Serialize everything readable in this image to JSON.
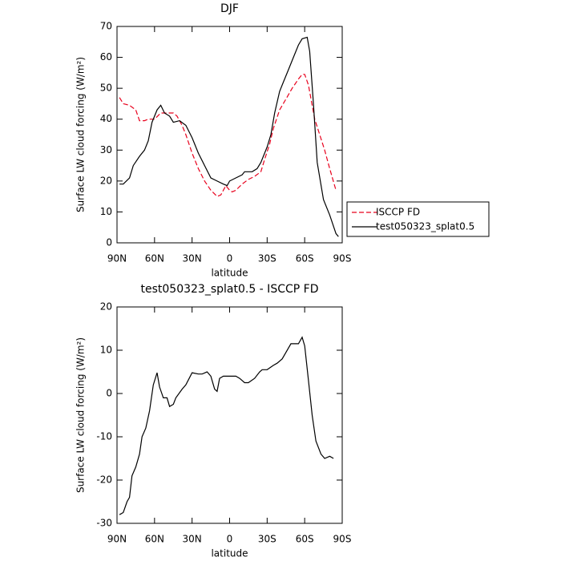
{
  "chart_data": [
    {
      "type": "line",
      "title": "DJF",
      "xlabel": "latitude",
      "ylabel": "Surface LW cloud forcing (W/m²)",
      "xlim": [
        90,
        -90
      ],
      "xticks": [
        {
          "value": 90,
          "label": "90N"
        },
        {
          "value": 60,
          "label": "60N"
        },
        {
          "value": 30,
          "label": "30N"
        },
        0,
        {
          "value": -30,
          "label": "30S"
        },
        {
          "value": -60,
          "label": "60S"
        },
        {
          "value": -90,
          "label": "90S"
        }
      ],
      "ylim": [
        0,
        70
      ],
      "yticks": [
        0,
        10,
        20,
        30,
        40,
        50,
        60,
        70
      ],
      "legend": "right",
      "series": [
        {
          "name": "ISCCP FD",
          "color": "#e8001c",
          "dash": true,
          "x": [
            88,
            85,
            80,
            75,
            72,
            68,
            65,
            60,
            55,
            50,
            45,
            42,
            38,
            35,
            30,
            25,
            20,
            15,
            10,
            7,
            3,
            0,
            -2,
            -5,
            -10,
            -15,
            -20,
            -25,
            -28,
            -32,
            -35,
            -40,
            -45,
            -50,
            -55,
            -58,
            -60,
            -63,
            -68,
            -72,
            -76,
            -80,
            -85
          ],
          "values": [
            47,
            45,
            44.5,
            43,
            39.5,
            39.5,
            40,
            40,
            42,
            42,
            42,
            41,
            38,
            35,
            29,
            24,
            20,
            17,
            15,
            15.5,
            18.5,
            17,
            16.5,
            17,
            19,
            20.5,
            21.5,
            23,
            27,
            32,
            37,
            43,
            46.5,
            50,
            53,
            54.5,
            54.5,
            51,
            40,
            35,
            30,
            24,
            17
          ]
        },
        {
          "name": "test050323_splat0.5",
          "color": "#000000",
          "dash": false,
          "x": [
            88,
            85,
            80,
            77,
            72,
            68,
            65,
            62,
            58,
            55,
            52,
            48,
            45,
            40,
            35,
            30,
            25,
            20,
            15,
            10,
            5,
            2,
            0,
            -5,
            -10,
            -12,
            -15,
            -18,
            -22,
            -25,
            -30,
            -33,
            -36,
            -40,
            -43,
            -47,
            -51,
            -55,
            -58,
            -62,
            -64,
            -67,
            -70,
            -75,
            -80,
            -85,
            -87
          ],
          "values": [
            19,
            19,
            21,
            25,
            28,
            30,
            33,
            39,
            43,
            44.5,
            42,
            41,
            39,
            39.5,
            38,
            34,
            29,
            25,
            21,
            20,
            19,
            18.5,
            20,
            21,
            22,
            23,
            23,
            23,
            24,
            26,
            31,
            35,
            42,
            49,
            52,
            56,
            60,
            64,
            66,
            66.5,
            62,
            45,
            26,
            14,
            9,
            3,
            2
          ]
        }
      ]
    },
    {
      "type": "line",
      "title": "test050323_splat0.5 - ISCCP FD",
      "xlabel": "latitude",
      "ylabel": "Surface LW cloud forcing (W/m²)",
      "xlim": [
        90,
        -90
      ],
      "xticks": [
        {
          "value": 90,
          "label": "90N"
        },
        {
          "value": 60,
          "label": "60N"
        },
        {
          "value": 30,
          "label": "30N"
        },
        0,
        {
          "value": -30,
          "label": "30S"
        },
        {
          "value": -60,
          "label": "60S"
        },
        {
          "value": -90,
          "label": "90S"
        }
      ],
      "ylim": [
        -30,
        20
      ],
      "yticks": [
        -30,
        -20,
        -10,
        0,
        10,
        20
      ],
      "series": [
        {
          "color": "#000000",
          "dash": false,
          "x": [
            88,
            85,
            82,
            80,
            78,
            75,
            72,
            70,
            67,
            64,
            61,
            58,
            56,
            53,
            50,
            48,
            45,
            43,
            38,
            35,
            30,
            25,
            22,
            18,
            15,
            12,
            10,
            8,
            5,
            0,
            -5,
            -8,
            -12,
            -15,
            -20,
            -24,
            -26,
            -30,
            -35,
            -38,
            -42,
            -45,
            -49,
            -52,
            -55,
            -58,
            -60,
            -63,
            -66,
            -69,
            -73,
            -76,
            -80,
            -83
          ],
          "values": [
            -28,
            -27.5,
            -25,
            -24,
            -19,
            -17,
            -14,
            -10,
            -8,
            -4,
            2,
            4.8,
            1.5,
            -1,
            -1,
            -3,
            -2.5,
            -1,
            1,
            2,
            4.8,
            4.5,
            4.5,
            5,
            4,
            1,
            0.5,
            3.5,
            4,
            4,
            4,
            3.5,
            2.5,
            2.5,
            3.5,
            5,
            5.5,
            5.5,
            6.5,
            7,
            8,
            9.5,
            11.5,
            11.5,
            11.5,
            13,
            11,
            3,
            -5,
            -11,
            -14,
            -15,
            -14.5,
            -15
          ]
        }
      ]
    }
  ]
}
